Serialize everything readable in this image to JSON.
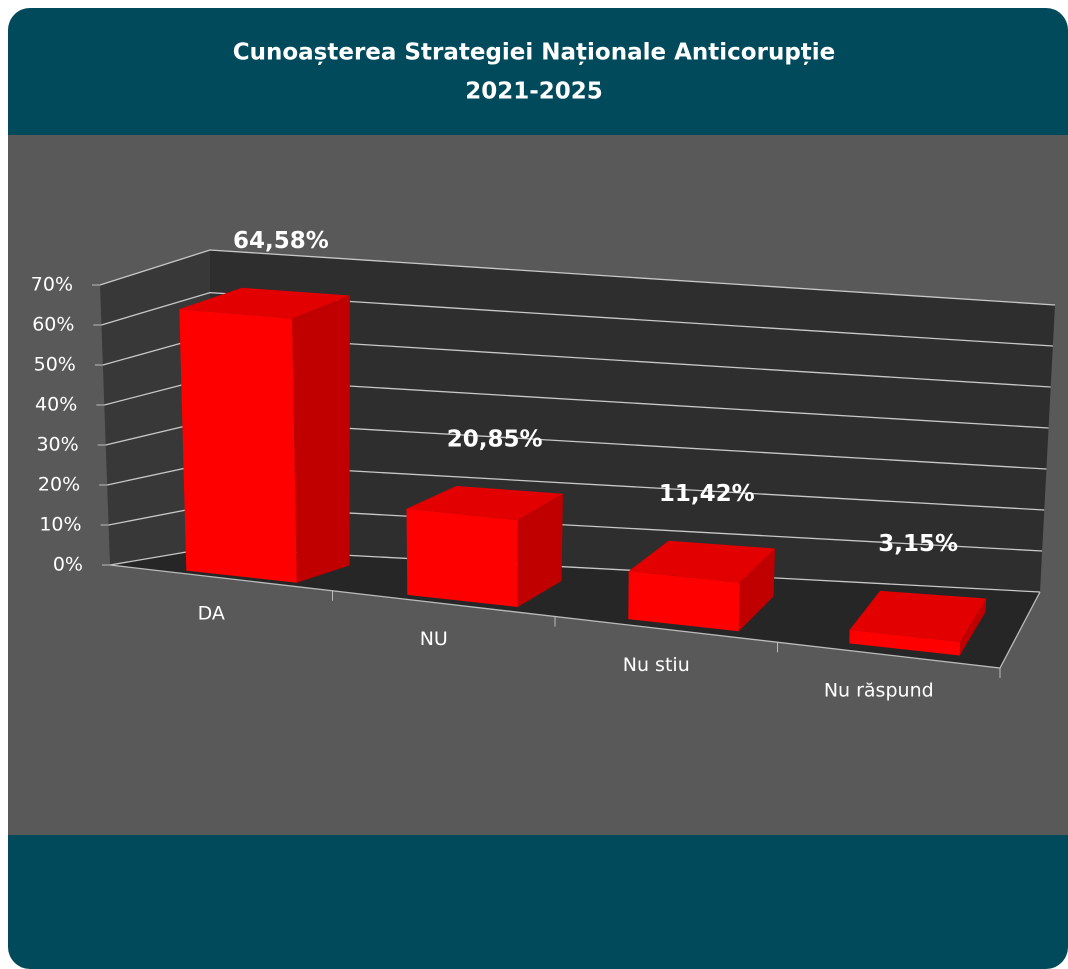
{
  "chart_data": {
    "type": "bar3d",
    "title": "Cunoașterea Strategiei Naționale Anticorupție",
    "subtitle": "2021-2025",
    "categories": [
      "DA",
      "NU",
      "Nu stiu",
      "Nu răspund"
    ],
    "values": [
      64.58,
      20.85,
      11.42,
      3.15
    ],
    "value_labels": [
      "64,58%",
      "20,85%",
      "11,42%",
      "3,15%"
    ],
    "color": "#ff0000",
    "ylim": [
      0,
      70
    ],
    "yticks": [
      {
        "value": 0,
        "label": "0%"
      },
      {
        "value": 10,
        "label": "10%"
      },
      {
        "value": 20,
        "label": "20%"
      },
      {
        "value": 30,
        "label": "30%"
      },
      {
        "value": 40,
        "label": "40%"
      },
      {
        "value": 50,
        "label": "50%"
      },
      {
        "value": 60,
        "label": "60%"
      },
      {
        "value": 70,
        "label": "70%"
      }
    ],
    "grid": true
  }
}
